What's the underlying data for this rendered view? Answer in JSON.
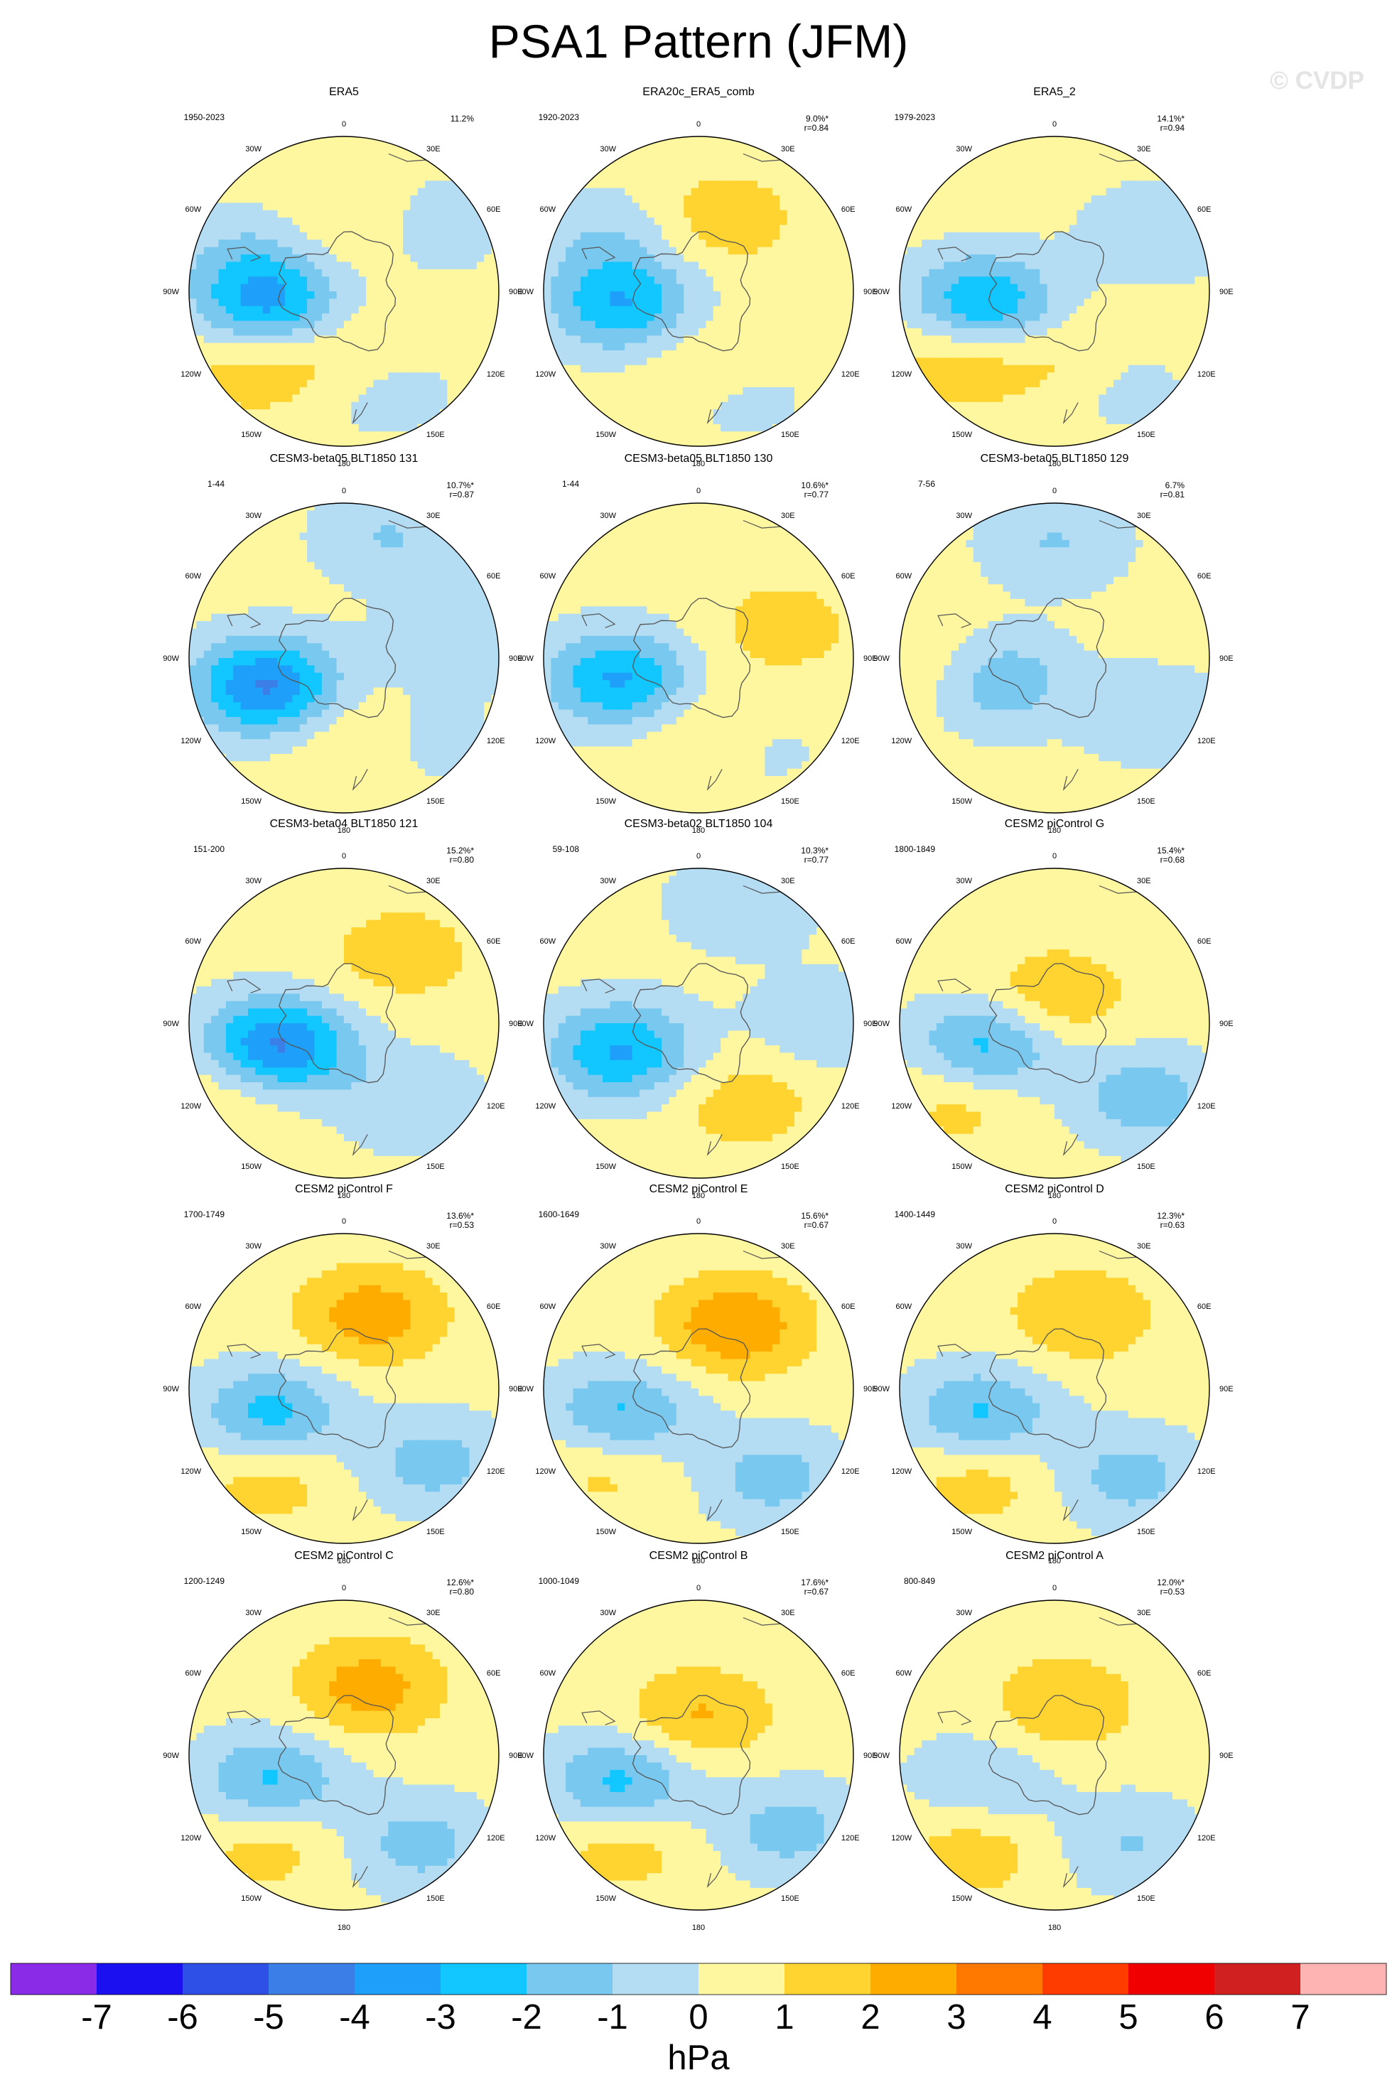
{
  "title": "PSA1 Pattern (JFM)",
  "watermark": "© CVDP",
  "lon_labels": [
    "0",
    "30E",
    "60E",
    "90E",
    "120E",
    "150E",
    "180",
    "150W",
    "120W",
    "90W",
    "60W",
    "30W"
  ],
  "colors": {
    "levels": [
      "#8a2be8",
      "#1a10f0",
      "#2e50e6",
      "#3c7ee8",
      "#1ea0fa",
      "#12c6ff",
      "#78c8f0",
      "#b4dcf2",
      "#fff6a0",
      "#ffd430",
      "#ffac00",
      "#ff7800",
      "#ff3c00",
      "#f00000",
      "#d02020",
      "#ffb4b4"
    ],
    "ocean_base": "#fff6a0",
    "coast": "#555555"
  },
  "chart_data": [
    {
      "type": "heatmap",
      "title": "ERA5",
      "years": "1950-2023",
      "percent": "11.2%",
      "r": "",
      "blobs": [
        {
          "lon": -100,
          "lat": -60,
          "amp": -3.5
        },
        {
          "lon": 160,
          "lat": -52,
          "amp": -1.5
        },
        {
          "lon": 50,
          "lat": -50,
          "amp": -1.4
        },
        {
          "lon": -70,
          "lat": -50,
          "amp": -1.2
        },
        {
          "lon": -130,
          "lat": -45,
          "amp": 1.4
        },
        {
          "lon": 20,
          "lat": -62,
          "amp": 1.2
        },
        {
          "lon": 170,
          "lat": -62,
          "amp": 1.4
        }
      ]
    },
    {
      "type": "heatmap",
      "title": "ERA20c_ERA5_comb",
      "years": "1920-2023",
      "percent": "9.0%*",
      "r": "r=0.84",
      "blobs": [
        {
          "lon": -100,
          "lat": -60,
          "amp": -3.3
        },
        {
          "lon": 160,
          "lat": -50,
          "amp": -1.3
        },
        {
          "lon": -60,
          "lat": -48,
          "amp": -1.2
        },
        {
          "lon": 20,
          "lat": -60,
          "amp": 1.3
        },
        {
          "lon": 170,
          "lat": -60,
          "amp": 1.4
        }
      ]
    },
    {
      "type": "heatmap",
      "title": "ERA5_2",
      "years": "1979-2023",
      "percent": "14.1%*",
      "r": "r=0.94",
      "blobs": [
        {
          "lon": -100,
          "lat": -62,
          "amp": -3.5
        },
        {
          "lon": 150,
          "lat": -50,
          "amp": -1.4
        },
        {
          "lon": 60,
          "lat": -45,
          "amp": -1.2
        },
        {
          "lon": -125,
          "lat": -45,
          "amp": 1.5
        },
        {
          "lon": 165,
          "lat": -60,
          "amp": 1.5
        }
      ]
    },
    {
      "type": "heatmap",
      "title": "CESM3-beta05 BLT1850 131",
      "years": "1-44",
      "percent": "10.7%*",
      "r": "r=0.87",
      "blobs": [
        {
          "lon": -110,
          "lat": -58,
          "amp": -4.5
        },
        {
          "lon": 20,
          "lat": -40,
          "amp": -1.4
        },
        {
          "lon": 80,
          "lat": -45,
          "amp": -1.2
        },
        {
          "lon": 140,
          "lat": -50,
          "amp": -1.2
        },
        {
          "lon": 165,
          "lat": -60,
          "amp": 1.3
        }
      ]
    },
    {
      "type": "heatmap",
      "title": "CESM3-beta05 BLT1850 130",
      "years": "1-44",
      "percent": "10.6%*",
      "r": "r=0.77",
      "blobs": [
        {
          "lon": -105,
          "lat": -58,
          "amp": -3.5
        },
        {
          "lon": 150,
          "lat": -52,
          "amp": -1.3
        },
        {
          "lon": 165,
          "lat": -60,
          "amp": 1.5
        },
        {
          "lon": 70,
          "lat": -55,
          "amp": 1.2
        }
      ]
    },
    {
      "type": "heatmap",
      "title": "CESM3-beta05 BLT1850 129",
      "years": "7-56",
      "percent": "6.7%",
      "r": "r=0.81",
      "blobs": [
        {
          "lon": -110,
          "lat": -65,
          "amp": -2.5
        },
        {
          "lon": 0,
          "lat": -45,
          "amp": -1.4
        },
        {
          "lon": 120,
          "lat": -45,
          "amp": -1.2
        },
        {
          "lon": -95,
          "lat": -45,
          "amp": 1.2
        }
      ]
    },
    {
      "type": "heatmap",
      "title": "CESM3-beta04 BLT1850 121",
      "years": "151-200",
      "percent": "15.2%*",
      "r": "r=0.80",
      "blobs": [
        {
          "lon": -110,
          "lat": -62,
          "amp": -5.0
        },
        {
          "lon": 140,
          "lat": -50,
          "amp": -1.3
        },
        {
          "lon": 40,
          "lat": -55,
          "amp": 1.3
        },
        {
          "lon": -120,
          "lat": -45,
          "amp": 1.3
        }
      ]
    },
    {
      "type": "heatmap",
      "title": "CESM3-beta02 BLT1850 104",
      "years": "59-108",
      "percent": "10.3%*",
      "r": "r=0.77",
      "blobs": [
        {
          "lon": -110,
          "lat": -58,
          "amp": -3.5
        },
        {
          "lon": 20,
          "lat": -40,
          "amp": -1.3
        },
        {
          "lon": 90,
          "lat": -42,
          "amp": -1.2
        },
        {
          "lon": 150,
          "lat": -55,
          "amp": 1.3
        }
      ]
    },
    {
      "type": "heatmap",
      "title": "CESM2 piControl G",
      "years": "1800-1849",
      "percent": "15.4%*",
      "r": "r=0.68",
      "blobs": [
        {
          "lon": -110,
          "lat": -62,
          "amp": -3.0
        },
        {
          "lon": 130,
          "lat": -45,
          "amp": -2.0
        },
        {
          "lon": 0,
          "lat": -80,
          "amp": 1.6
        },
        {
          "lon": -130,
          "lat": -45,
          "amp": 1.3
        }
      ]
    },
    {
      "type": "heatmap",
      "title": "CESM2 piControl F",
      "years": "1700-1749",
      "percent": "13.6%*",
      "r": "r=0.53",
      "blobs": [
        {
          "lon": -110,
          "lat": -60,
          "amp": -2.8
        },
        {
          "lon": 130,
          "lat": -45,
          "amp": -1.8
        },
        {
          "lon": 20,
          "lat": -60,
          "amp": 2.3
        },
        {
          "lon": -140,
          "lat": -45,
          "amp": 1.3
        }
      ]
    },
    {
      "type": "heatmap",
      "title": "CESM2 piControl E",
      "years": "1600-1649",
      "percent": "15.6%*",
      "r": "r=0.67",
      "blobs": [
        {
          "lon": -110,
          "lat": -58,
          "amp": -2.8
        },
        {
          "lon": 140,
          "lat": -45,
          "amp": -1.8
        },
        {
          "lon": 30,
          "lat": -62,
          "amp": 2.6
        },
        {
          "lon": -130,
          "lat": -45,
          "amp": 1.3
        }
      ]
    },
    {
      "type": "heatmap",
      "title": "CESM2 piControl D",
      "years": "1400-1449",
      "percent": "12.3%*",
      "r": "r=0.63",
      "blobs": [
        {
          "lon": -110,
          "lat": -60,
          "amp": -2.6
        },
        {
          "lon": 140,
          "lat": -45,
          "amp": -1.8
        },
        {
          "lon": 20,
          "lat": -60,
          "amp": 1.6
        },
        {
          "lon": -140,
          "lat": -45,
          "amp": 1.3
        }
      ]
    },
    {
      "type": "heatmap",
      "title": "CESM2 piControl C",
      "years": "1200-1249",
      "percent": "12.6%*",
      "r": "r=0.80",
      "blobs": [
        {
          "lon": -110,
          "lat": -60,
          "amp": -2.6
        },
        {
          "lon": 140,
          "lat": -45,
          "amp": -1.8
        },
        {
          "lon": 20,
          "lat": -62,
          "amp": 2.2
        },
        {
          "lon": -140,
          "lat": -45,
          "amp": 1.2
        }
      ]
    },
    {
      "type": "heatmap",
      "title": "CESM2 piControl B",
      "years": "1000-1049",
      "percent": "17.6%*",
      "r": "r=0.67",
      "blobs": [
        {
          "lon": -110,
          "lat": -58,
          "amp": -2.8
        },
        {
          "lon": 130,
          "lat": -45,
          "amp": -1.8
        },
        {
          "lon": 0,
          "lat": -75,
          "amp": 1.8
        },
        {
          "lon": -140,
          "lat": -45,
          "amp": 1.3
        }
      ]
    },
    {
      "type": "heatmap",
      "title": "CESM2 piControl A",
      "years": "800-849",
      "percent": "12.0%*",
      "r": "r=0.53",
      "blobs": [
        {
          "lon": -110,
          "lat": -60,
          "amp": -1.4
        },
        {
          "lon": 140,
          "lat": -45,
          "amp": -1.4
        },
        {
          "lon": 10,
          "lat": -70,
          "amp": 1.6
        },
        {
          "lon": -140,
          "lat": -42,
          "amp": 1.3
        }
      ]
    }
  ],
  "colorbar": {
    "labels": [
      "-7",
      "-6",
      "-5",
      "-4",
      "-3",
      "-2",
      "-1",
      "0",
      "1",
      "2",
      "3",
      "4",
      "5",
      "6",
      "7"
    ],
    "units": "hPa"
  }
}
